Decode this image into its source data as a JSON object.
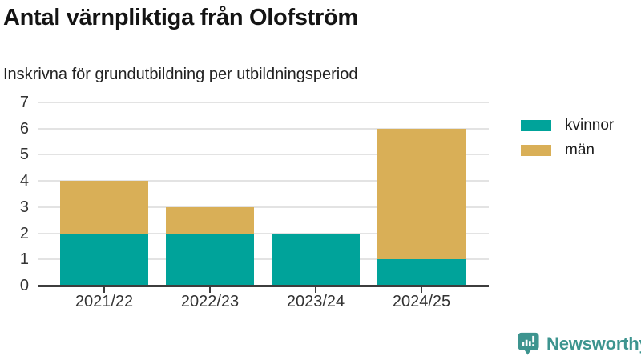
{
  "chart_data": {
    "type": "bar",
    "stacked": true,
    "title": "Antal värnpliktiga från Olofström",
    "subtitle": "Inskrivna för grundutbildning per utbildningsperiod",
    "categories": [
      "2021/22",
      "2022/23",
      "2023/24",
      "2024/25"
    ],
    "series": [
      {
        "name": "kvinnor",
        "color": "#00a39a",
        "values": [
          2,
          2,
          2,
          1
        ]
      },
      {
        "name": "män",
        "color": "#d9af57",
        "values": [
          2,
          1,
          0,
          5
        ]
      }
    ],
    "xlabel": "",
    "ylabel": "",
    "ylim": [
      0,
      7
    ],
    "yticks": [
      0,
      1,
      2,
      3,
      4,
      5,
      6,
      7
    ],
    "grid": true,
    "legend_position": "right",
    "axis_color": "#3d3d3d",
    "gridline_color": "#e3e3e3",
    "tick_label_color": "#333333"
  },
  "footer": {
    "brand": "Newsworthy",
    "brand_color": "#3d948f",
    "logo_icon": "speech-bubble-bar-chart-icon"
  }
}
